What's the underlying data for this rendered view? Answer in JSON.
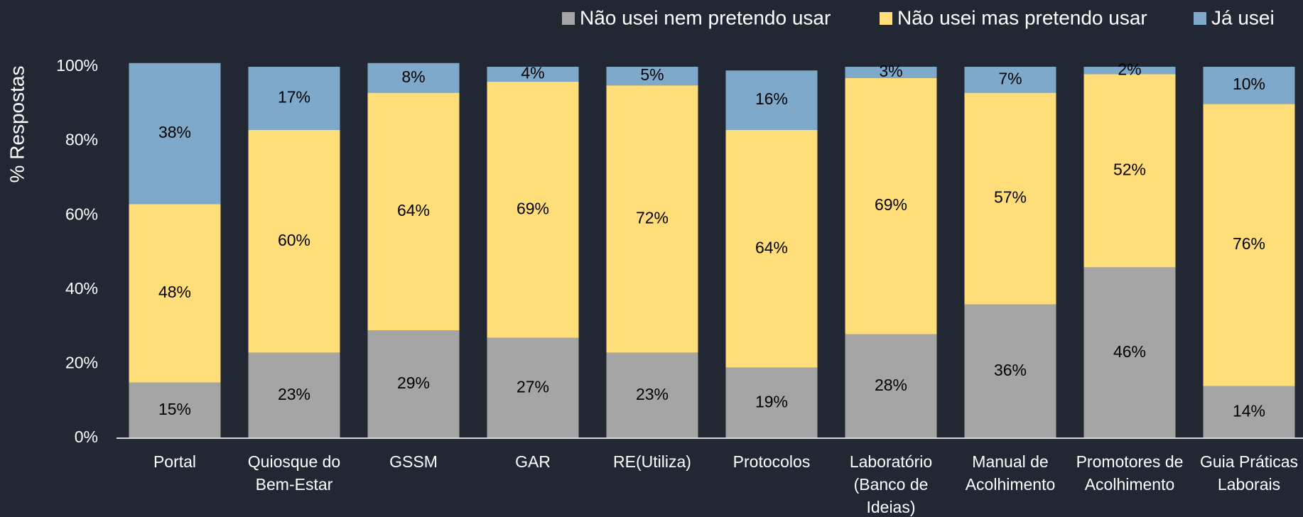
{
  "chart_data": {
    "type": "stacked_bar",
    "y_label": "% Respostas",
    "categories": [
      [
        "Portal"
      ],
      [
        "Quiosque do",
        "Bem-Estar"
      ],
      [
        "GSSM"
      ],
      [
        "GAR"
      ],
      [
        "RE(Utiliza)"
      ],
      [
        "Protocolos"
      ],
      [
        "Laboratório",
        "(Banco de",
        "Ideias)"
      ],
      [
        "Manual de",
        "Acolhimento"
      ],
      [
        "Promotores de",
        "Acolhimento"
      ],
      [
        "Guia Práticas",
        "Laborais"
      ]
    ],
    "series": [
      {
        "name": "Não usei nem pretendo usar",
        "color": "#a5a5a5",
        "values": [
          15,
          23,
          29,
          27,
          23,
          19,
          28,
          36,
          46,
          14
        ],
        "value_labels": [
          "15%",
          "23%",
          "29%",
          "27%",
          "23%",
          "19%",
          "28%",
          "36%",
          "46%",
          "14%"
        ]
      },
      {
        "name": "Não usei mas pretendo usar",
        "color": "#ffde7a",
        "values": [
          48,
          60,
          64,
          69,
          72,
          64,
          69,
          57,
          52,
          76
        ],
        "value_labels": [
          "48%",
          "60%",
          "64%",
          "69%",
          "72%",
          "64%",
          "69%",
          "57%",
          "52%",
          "76%"
        ]
      },
      {
        "name": "Já usei",
        "color": "#7ea9cb",
        "values": [
          38,
          17,
          8,
          4,
          5,
          16,
          3,
          7,
          2,
          10
        ],
        "value_labels": [
          "38%",
          "17%",
          "8%",
          "4%",
          "5%",
          "16%",
          "3%",
          "7%",
          "2%",
          "10%"
        ]
      }
    ],
    "ylim": [
      0,
      100
    ],
    "yticks": [
      {
        "value": 0,
        "label": "0%"
      },
      {
        "value": 20,
        "label": "20%"
      },
      {
        "value": 40,
        "label": "40%"
      },
      {
        "value": 60,
        "label": "60%"
      },
      {
        "value": 80,
        "label": "80%"
      },
      {
        "value": 100,
        "label": "100%"
      }
    ],
    "legend": "top-right"
  }
}
